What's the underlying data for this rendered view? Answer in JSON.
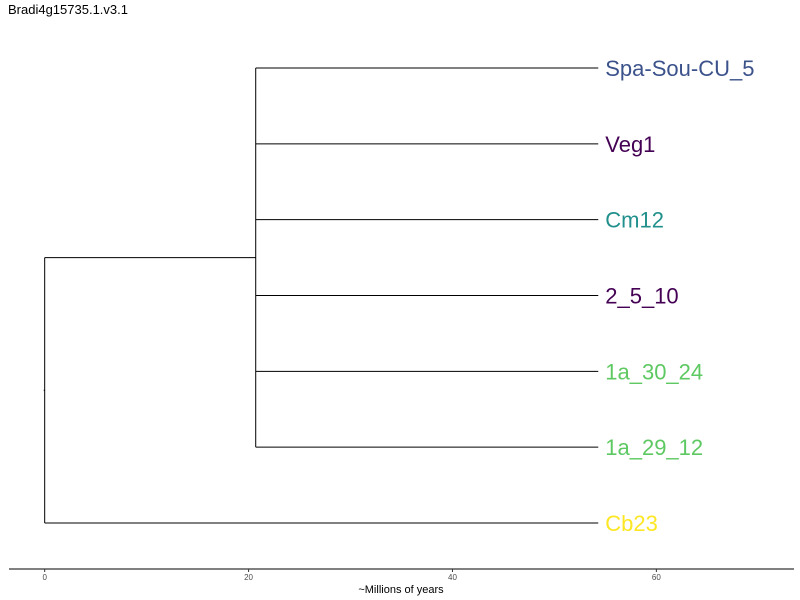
{
  "title": "Bradi4g15735.1.v3.1",
  "xaxis": {
    "label": "~Millions of years",
    "range": [
      -3.5,
      73.5
    ],
    "ticks": [
      0,
      20,
      40,
      60
    ]
  },
  "tree": {
    "root_x": 0,
    "clade_x": 20.7,
    "tip_x": 54.3,
    "tips": [
      {
        "label": "Spa-Sou-CU_5",
        "color": "#3b528b"
      },
      {
        "label": "Veg1",
        "color": "#440154"
      },
      {
        "label": "Cm12",
        "color": "#21908c"
      },
      {
        "label": "2_5_10",
        "color": "#440154"
      },
      {
        "label": "1a_30_24",
        "color": "#5ec962"
      },
      {
        "label": "1a_29_12",
        "color": "#5ec962"
      },
      {
        "label": "Cb23",
        "color": "#fde725"
      }
    ]
  }
}
